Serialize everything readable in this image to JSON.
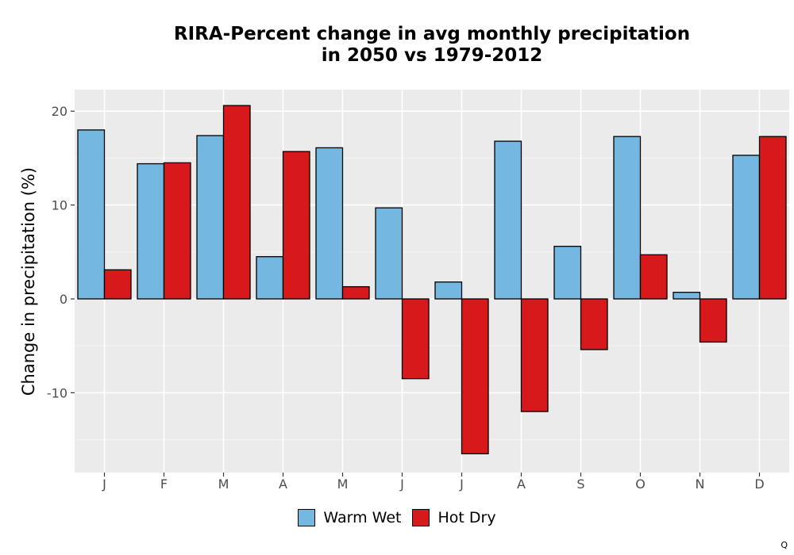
{
  "chart_data": {
    "type": "bar",
    "title_lines": [
      "RIRA-Percent change in avg monthly precipitation",
      "in 2050 vs 1979-2012"
    ],
    "xlabel": "",
    "ylabel": "Change in precipitation (%)",
    "categories": [
      "J",
      "F",
      "M",
      "A",
      "M",
      "J",
      "J",
      "A",
      "S",
      "O",
      "N",
      "D"
    ],
    "series": [
      {
        "name": "Warm Wet",
        "color": "#74b7e0",
        "values": [
          18.0,
          14.4,
          17.4,
          4.5,
          16.1,
          9.7,
          1.8,
          16.8,
          5.6,
          17.3,
          0.7,
          15.3
        ]
      },
      {
        "name": "Hot Dry",
        "color": "#d7191c",
        "values": [
          3.1,
          14.5,
          20.6,
          15.7,
          1.3,
          -8.5,
          -16.5,
          -12.0,
          -5.4,
          4.7,
          -4.6,
          17.3
        ]
      }
    ],
    "ylim": [
      -18.5,
      22.3
    ],
    "yticks": [
      -10,
      0,
      10,
      20
    ],
    "ytick_labels": [
      "-10",
      "0",
      "10",
      "20"
    ],
    "grid": true,
    "legend_position": "bottom"
  },
  "corner_mark": "Q"
}
